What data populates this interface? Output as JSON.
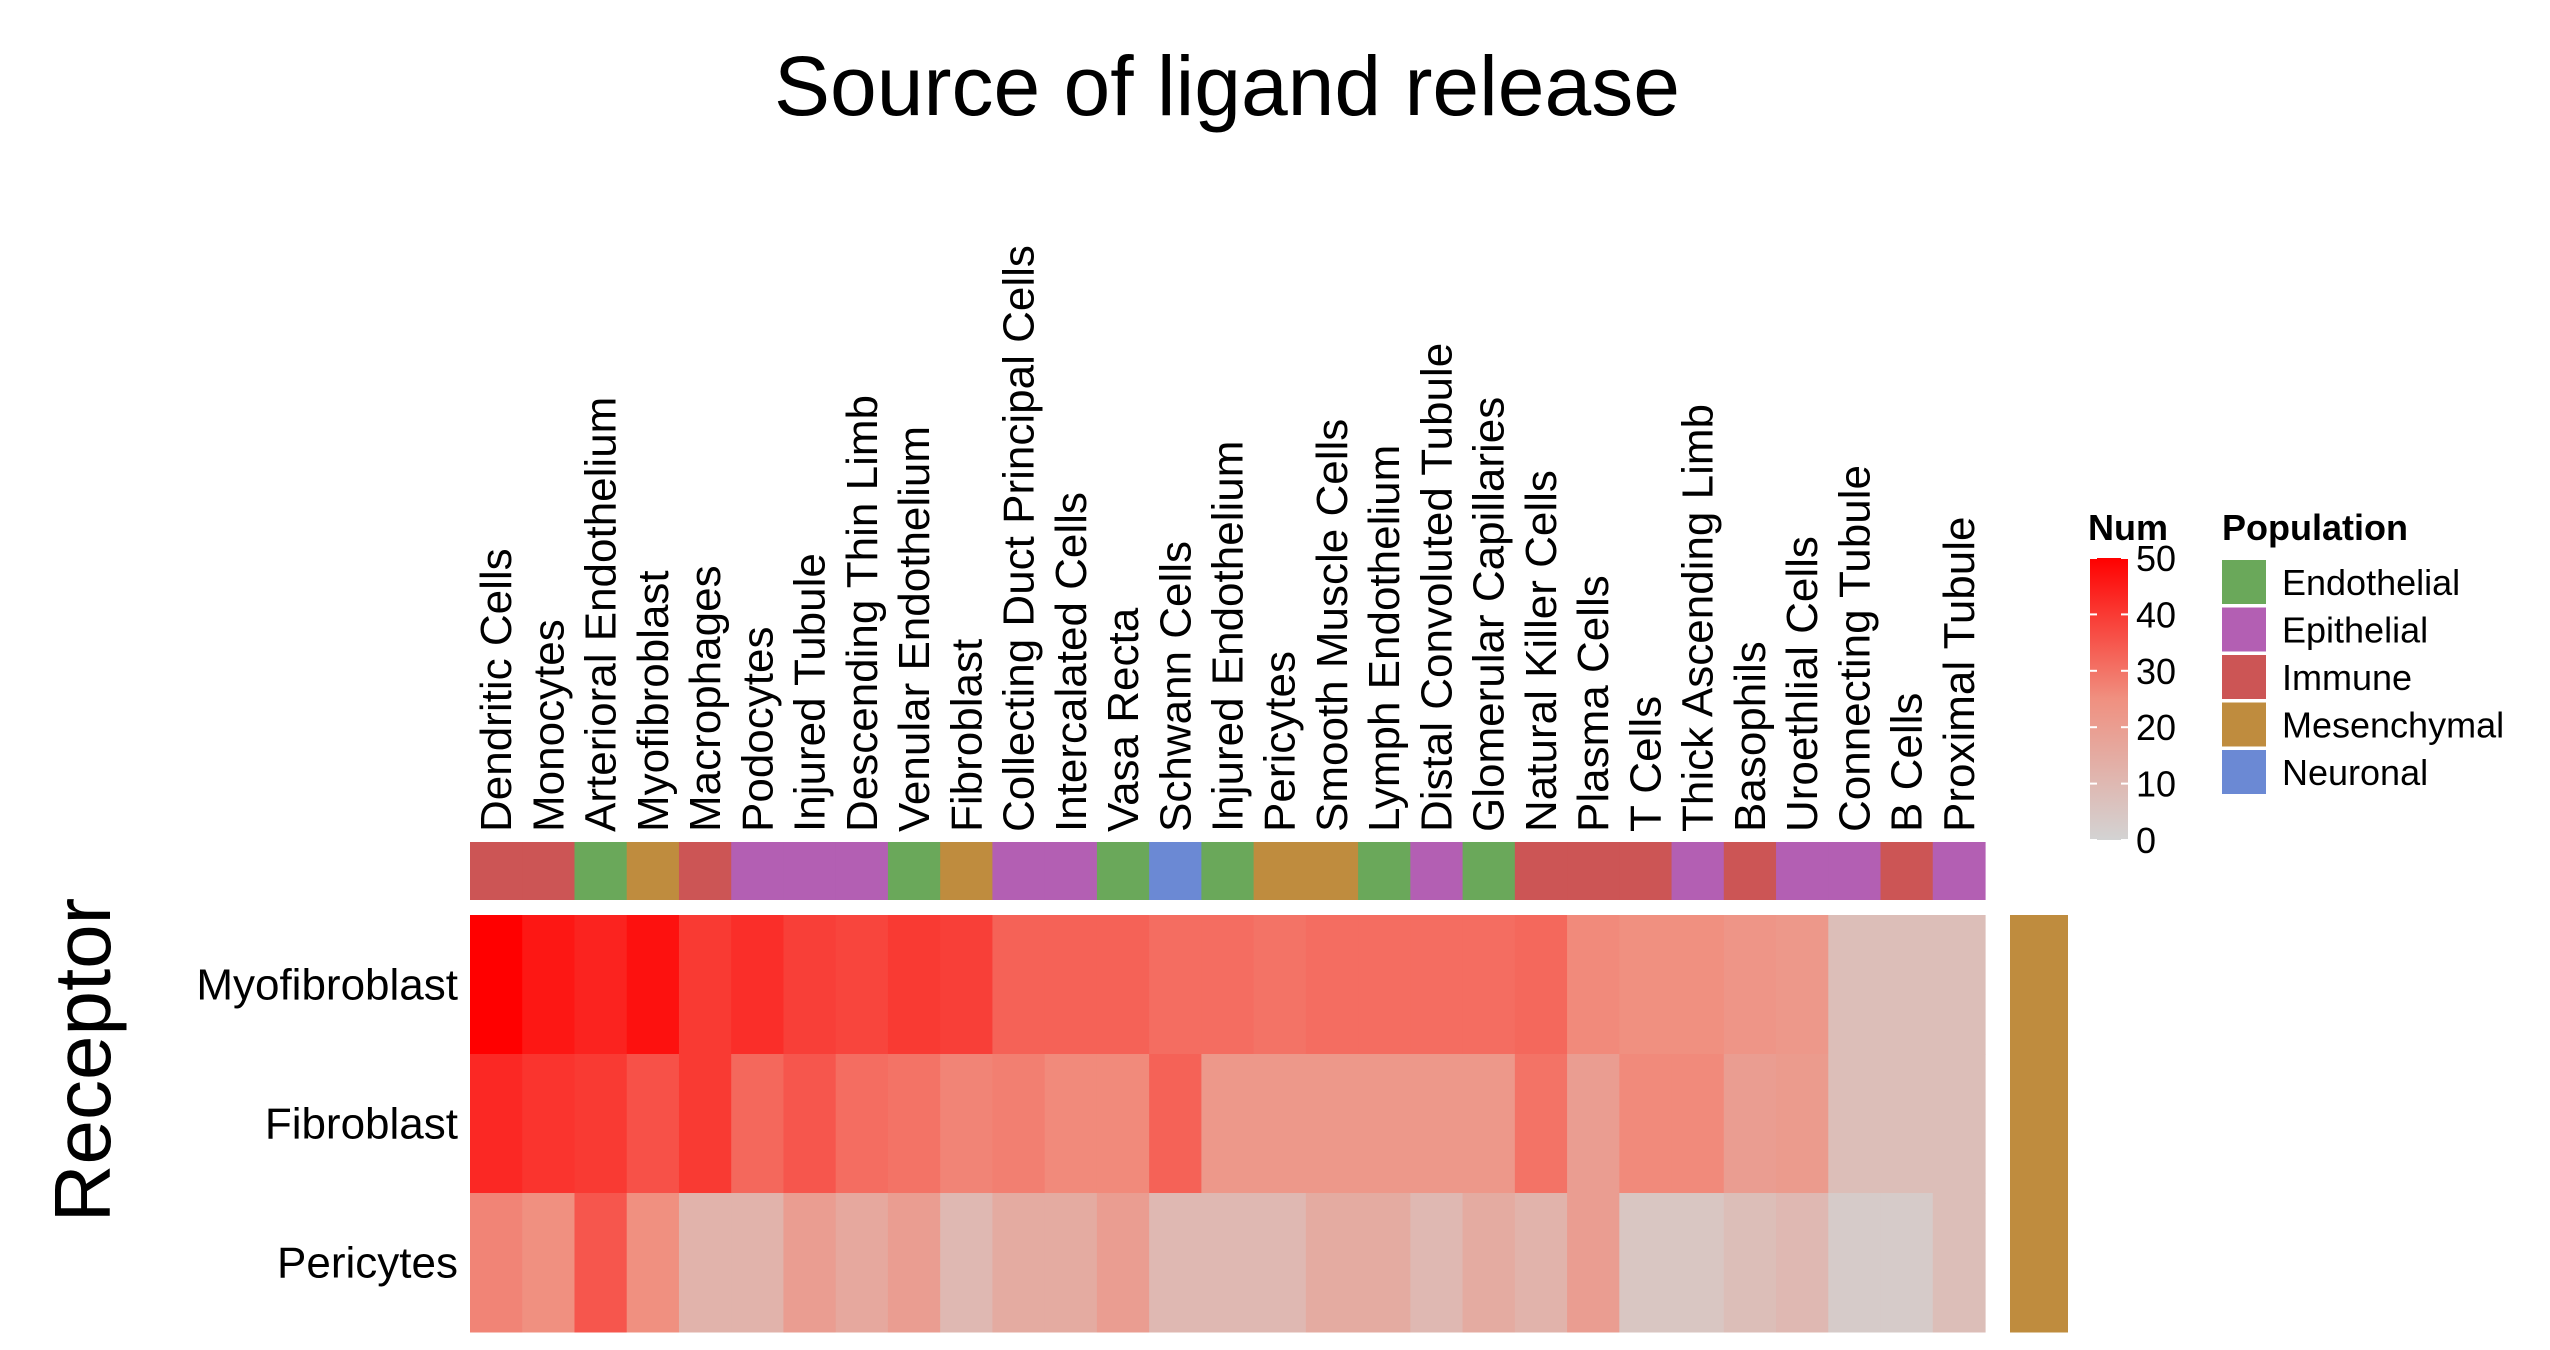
{
  "chart_data": {
    "type": "heatmap",
    "title": "Source of ligand release",
    "ylabel": "Receptor",
    "columns": [
      "Dendritic Cells",
      "Monocytes",
      "Arterioral Endothelium",
      "Myofibroblast",
      "Macrophages",
      "Podocytes",
      "Injured Tubule",
      "Descending Thin Limb",
      "Venular Endothelium",
      "Fibroblast",
      "Collecting Duct Principal Cells",
      "Intercalated Cells",
      "Vasa Recta",
      "Schwann Cells",
      "Injured Endothelium",
      "Pericytes",
      "Smooth Muscle Cells",
      "Lymph Endothelium",
      "Distal Convoluted Tubule",
      "Glomerular Capillaries",
      "Natural Killer Cells",
      "Plasma Cells",
      "T Cells",
      "Thick Ascending Limb",
      "Basophils",
      "Uroethlial Cells",
      "Connecting Tubule",
      "B Cells",
      "Proximal Tubule"
    ],
    "column_population": [
      "Immune",
      "Immune",
      "Endothelial",
      "Mesenchymal",
      "Immune",
      "Epithelial",
      "Epithelial",
      "Epithelial",
      "Endothelial",
      "Mesenchymal",
      "Epithelial",
      "Epithelial",
      "Endothelial",
      "Neuronal",
      "Endothelial",
      "Mesenchymal",
      "Mesenchymal",
      "Endothelial",
      "Epithelial",
      "Endothelial",
      "Immune",
      "Immune",
      "Immune",
      "Epithelial",
      "Immune",
      "Epithelial",
      "Epithelial",
      "Immune",
      "Epithelial"
    ],
    "rows": [
      "Myofibroblast",
      "Fibroblast",
      "Pericytes"
    ],
    "row_population": [
      "Mesenchymal",
      "Mesenchymal",
      "Mesenchymal"
    ],
    "values": [
      [
        50,
        46,
        44,
        47,
        40,
        42,
        39,
        38,
        40,
        39,
        33,
        33,
        33,
        31,
        31,
        30,
        31,
        31,
        31,
        31,
        32,
        26,
        25,
        25,
        23,
        22,
        8,
        8,
        8
      ],
      [
        43,
        41,
        40,
        36,
        40,
        32,
        35,
        31,
        30,
        27,
        28,
        26,
        26,
        33,
        22,
        22,
        22,
        22,
        22,
        22,
        30,
        20,
        26,
        26,
        20,
        21,
        8,
        8,
        8
      ],
      [
        27,
        25,
        35,
        25,
        12,
        12,
        20,
        16,
        20,
        10,
        15,
        15,
        20,
        10,
        10,
        10,
        15,
        15,
        10,
        15,
        12,
        20,
        5,
        5,
        8,
        10,
        3,
        3,
        8
      ]
    ],
    "colorbar": {
      "title": "Num",
      "range": [
        0,
        50
      ],
      "ticks": [
        0,
        10,
        20,
        30,
        40,
        50
      ],
      "colors": [
        "#d3d3d3",
        "#ff0000"
      ]
    },
    "legend": {
      "title": "Population",
      "position": "right",
      "items": [
        {
          "label": "Endothelial",
          "color": "#6aa85a"
        },
        {
          "label": "Epithelial",
          "color": "#b35fb3"
        },
        {
          "label": "Immune",
          "color": "#cc5555"
        },
        {
          "label": "Mesenchymal",
          "color": "#bf8c3e"
        },
        {
          "label": "Neuronal",
          "color": "#6b89d4"
        }
      ]
    }
  }
}
